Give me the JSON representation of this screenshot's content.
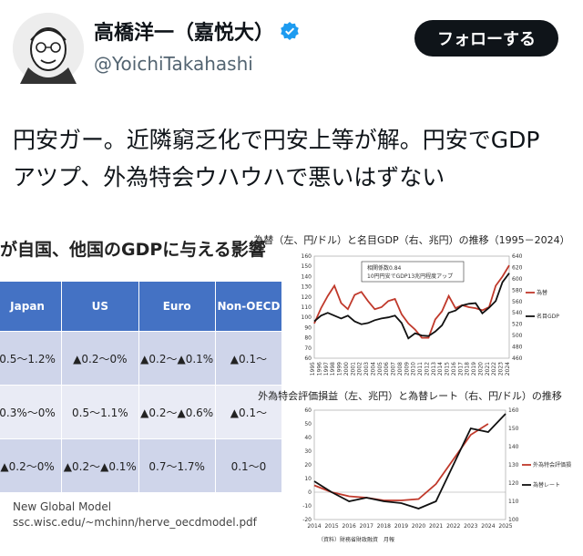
{
  "user": {
    "display_name": "高橋洋一（嘉悦大）",
    "handle": "@YoichiTakahashi",
    "verified": true,
    "avatar_icon": "caricature-avatar"
  },
  "follow_button": {
    "label": "フォローする"
  },
  "tweet": {
    "line1": "円安ガー。近隣窮乏化で円安上等が解。円安でGDP",
    "line2": "アツプ、外為特会ウハウハで悪いはずない"
  },
  "left_panel": {
    "title": "が自国、他国のGDPに与える影響",
    "table": {
      "headers": [
        "Japan",
        "US",
        "Euro",
        "Non-OECD"
      ],
      "rows": [
        [
          "0.5〜1.2%",
          "▲0.2〜0%",
          "▲0.2〜▲0.1%",
          "▲0.1〜"
        ],
        [
          "0.3%〜0%",
          "0.5〜1.1%",
          "▲0.2〜▲0.6%",
          "▲0.1〜"
        ],
        [
          "▲0.2〜0%",
          "▲0.2〜▲0.1%",
          "0.7〜1.7%",
          "0.1〜0"
        ]
      ]
    },
    "source_line1": "New Global Model",
    "source_line2": "ssc.wisc.edu/~mchinn/herve_oecdmodel.pdf"
  },
  "chart_data": [
    {
      "type": "line",
      "title": "為替（左、円/ドル）と名目GDP（右、兆円）の推移（1995－2024）",
      "annotation": [
        "相関係数0.84",
        "10円円安でGDP13兆円程度アップ"
      ],
      "x": [
        1995,
        1996,
        1997,
        1998,
        1999,
        2000,
        2001,
        2002,
        2003,
        2004,
        2005,
        2006,
        2007,
        2008,
        2009,
        2010,
        2011,
        2012,
        2013,
        2014,
        2015,
        2016,
        2017,
        2018,
        2019,
        2020,
        2021,
        2022,
        2023,
        2024
      ],
      "y_left_ticks": [
        60,
        70,
        80,
        90,
        100,
        110,
        120,
        130,
        140,
        150,
        160
      ],
      "y_right_ticks": [
        460,
        480,
        500,
        520,
        540,
        560,
        580,
        600,
        620,
        640
      ],
      "ylim_left": [
        60,
        160
      ],
      "ylim_right": [
        460,
        640
      ],
      "series": [
        {
          "name": "為替",
          "axis": "left",
          "color": "#c0392b",
          "values": [
            94,
            109,
            121,
            131,
            114,
            108,
            122,
            125,
            116,
            108,
            110,
            116,
            118,
            103,
            94,
            88,
            80,
            80,
            98,
            106,
            121,
            109,
            112,
            110,
            109,
            107,
            110,
            131,
            140,
            151
          ]
        },
        {
          "name": "名目GDP",
          "axis": "right",
          "color": "#111111",
          "values": [
            525,
            535,
            540,
            535,
            530,
            535,
            525,
            520,
            522,
            527,
            530,
            532,
            535,
            522,
            495,
            504,
            500,
            499,
            507,
            518,
            540,
            544,
            553,
            556,
            557,
            539,
            549,
            561,
            594,
            610
          ]
        }
      ]
    },
    {
      "type": "line",
      "title": "外為特会評価損益（左、兆円）と為替レート（右、円/ドル）の推移",
      "source": "（資料）財務省財政融資　月報",
      "x": [
        2014,
        2015,
        2016,
        2017,
        2018,
        2019,
        2020,
        2021,
        2022,
        2023,
        2024,
        2025
      ],
      "y_left_ticks": [
        -20,
        -10,
        0,
        10,
        20,
        30,
        40,
        50,
        60
      ],
      "y_right_ticks": [
        100,
        110,
        120,
        130,
        140,
        150,
        160
      ],
      "ylim_left": [
        -20,
        60
      ],
      "ylim_right": [
        100,
        160
      ],
      "series": [
        {
          "name": "外為特会評価損",
          "axis": "left",
          "color": "#c0392b",
          "values": [
            5,
            0,
            -3,
            -4,
            -6,
            -6,
            -5,
            6,
            24,
            42,
            50,
            null
          ]
        },
        {
          "name": "為替レート",
          "axis": "right",
          "color": "#111111",
          "values": [
            121,
            115,
            110,
            112,
            110,
            109,
            106,
            110,
            130,
            150,
            148,
            158
          ]
        }
      ]
    }
  ]
}
